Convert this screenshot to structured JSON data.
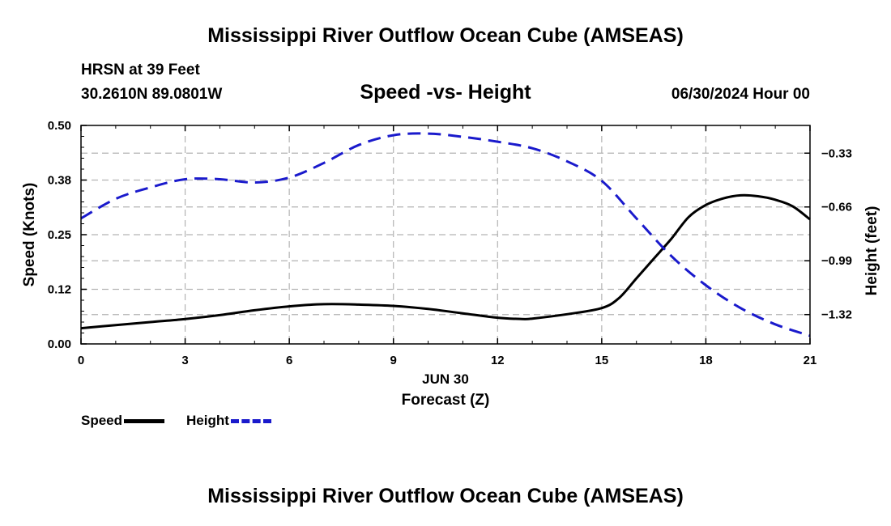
{
  "header": {
    "title": "Mississippi River Outflow Ocean Cube (AMSEAS)",
    "station": "HRSN at 39 Feet",
    "coords": "30.2610N  89.0801W",
    "subtitle": "Speed -vs- Height",
    "datetime": "06/30/2024 Hour 00"
  },
  "footer": {
    "title": "Mississippi River Outflow Ocean Cube (AMSEAS)"
  },
  "legend": {
    "speed_label": "Speed",
    "height_label": "Height"
  },
  "colors": {
    "speed": "#000000",
    "height": "#1a1acc",
    "grid": "#b3b3b3"
  },
  "chart_data": {
    "type": "line",
    "xlabel": "Forecast (Z)",
    "date_label": "JUN 30",
    "ylabel": "Speed (Knots)",
    "y2label": "Height (feet)",
    "xlim": [
      0,
      21
    ],
    "ylim": [
      0,
      0.5
    ],
    "y2lim": [
      -1.5,
      -0.16
    ],
    "x_ticks": [
      0,
      3,
      6,
      9,
      12,
      15,
      18,
      21
    ],
    "x_tick_labels": [
      "0",
      "3",
      "6",
      "9",
      "12",
      "15",
      "18",
      "21"
    ],
    "y_ticks": [
      0,
      0.125,
      0.25,
      0.375,
      0.5
    ],
    "y_tick_labels": [
      "0.00",
      "0.12",
      "0.25",
      "0.38",
      "0.50"
    ],
    "y2_ticks": [
      -0.33,
      -0.66,
      -0.99,
      -1.32
    ],
    "y2_tick_labels": [
      "−0.33",
      "−0.66",
      "−0.99",
      "−1.32"
    ],
    "series": [
      {
        "name": "Speed",
        "axis": "left",
        "style": "solid",
        "x": [
          0,
          1,
          2,
          3,
          4,
          5,
          6,
          7,
          8,
          9,
          10,
          11,
          12,
          12.7,
          13,
          14,
          15,
          15.5,
          16,
          16.5,
          17,
          17.5,
          18,
          18.5,
          19,
          19.5,
          20,
          20.5,
          21
        ],
        "values": [
          0.036,
          0.043,
          0.05,
          0.057,
          0.066,
          0.077,
          0.086,
          0.091,
          0.09,
          0.087,
          0.08,
          0.07,
          0.06,
          0.057,
          0.058,
          0.068,
          0.082,
          0.105,
          0.15,
          0.195,
          0.24,
          0.29,
          0.318,
          0.333,
          0.34,
          0.338,
          0.33,
          0.315,
          0.285
        ]
      },
      {
        "name": "Height",
        "axis": "right",
        "style": "dashed",
        "x": [
          0,
          1,
          2,
          3,
          4,
          5,
          6,
          7,
          8,
          9,
          10,
          11,
          12,
          13,
          14,
          15,
          16,
          17,
          18,
          19,
          20,
          21
        ],
        "values": [
          -0.73,
          -0.61,
          -0.54,
          -0.49,
          -0.49,
          -0.51,
          -0.48,
          -0.39,
          -0.28,
          -0.22,
          -0.21,
          -0.23,
          -0.26,
          -0.3,
          -0.38,
          -0.5,
          -0.73,
          -0.96,
          -1.14,
          -1.28,
          -1.38,
          -1.45
        ]
      }
    ]
  }
}
